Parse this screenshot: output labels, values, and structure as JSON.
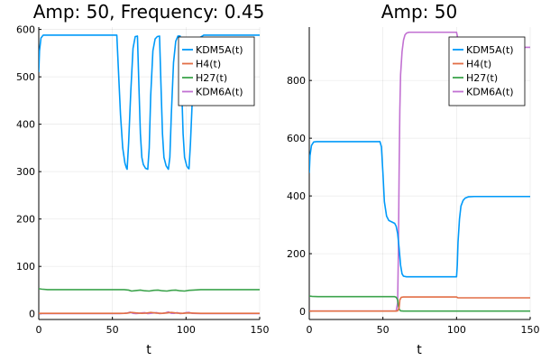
{
  "chart_data": [
    {
      "type": "line",
      "title": "Amp: 50, Frequency: 0.45",
      "xlabel": "t",
      "ylabel": "",
      "xlim": [
        0,
        150
      ],
      "ylim": [
        -12,
        605
      ],
      "xticks": [
        0,
        50,
        100,
        150
      ],
      "yticks": [
        0,
        100,
        200,
        300,
        400,
        500,
        600
      ],
      "grid": true,
      "legend_position": "top-right",
      "series": [
        {
          "name": "KDM5A(t)",
          "color": "#009af9",
          "x": [
            0,
            0.5,
            1.5,
            3,
            5,
            10,
            53,
            54,
            55.5,
            57,
            58.5,
            59.5,
            60,
            61,
            62.5,
            64,
            65.5,
            67,
            68,
            69,
            70,
            71,
            72.5,
            74,
            75,
            76,
            77.5,
            79,
            80.5,
            82,
            83,
            84,
            85,
            86.5,
            88,
            89,
            90,
            91.5,
            93,
            94.5,
            96,
            97,
            98,
            99,
            100.5,
            101.5,
            102,
            103,
            104.5,
            106,
            108,
            112,
            150
          ],
          "y": [
            510,
            555,
            582,
            588,
            588,
            588,
            588,
            520,
            420,
            350,
            318,
            308,
            305,
            360,
            470,
            560,
            585,
            586,
            480,
            380,
            330,
            315,
            307,
            305,
            350,
            460,
            555,
            580,
            585,
            586,
            480,
            380,
            330,
            312,
            305,
            330,
            420,
            530,
            575,
            586,
            586,
            480,
            380,
            330,
            312,
            307,
            306,
            360,
            470,
            555,
            580,
            588,
            588
          ]
        },
        {
          "name": "H4(t)",
          "color": "#e26f46",
          "x": [
            0,
            50,
            58,
            60,
            63,
            66,
            70,
            73,
            76,
            80,
            84,
            87,
            90,
            94,
            98,
            101,
            105,
            110,
            150
          ],
          "y": [
            1,
            1,
            1,
            1.5,
            3,
            2,
            1,
            1.5,
            3,
            1.5,
            1,
            2,
            3,
            1.5,
            1,
            2,
            1.5,
            1,
            1
          ]
        },
        {
          "name": "H27(t)",
          "color": "#3da44d",
          "x": [
            0,
            2,
            6,
            55,
            58,
            61,
            63,
            66,
            69,
            72,
            75,
            78,
            81,
            84,
            87,
            90,
            93,
            96,
            99,
            102,
            105,
            110,
            150
          ],
          "y": [
            53,
            52,
            51,
            51,
            51,
            50,
            48,
            49,
            50,
            48.5,
            48,
            49.5,
            50,
            48.5,
            48,
            49.5,
            50,
            48.5,
            48,
            49.5,
            50,
            51,
            51
          ]
        },
        {
          "name": "KDM6A(t)",
          "color": "#c271d2",
          "x": [
            0,
            55,
            58,
            60,
            62,
            64,
            66,
            68,
            70,
            72,
            74,
            76,
            78,
            80,
            82,
            84,
            86,
            88,
            90,
            92,
            94,
            96,
            98,
            100,
            102,
            104,
            110,
            150
          ],
          "y": [
            0.5,
            0.5,
            1,
            1.5,
            3.5,
            1,
            0.5,
            1,
            2,
            2.5,
            0.5,
            1,
            2,
            2.5,
            0.5,
            1,
            2,
            4,
            1,
            1,
            2.5,
            0.5,
            1,
            2.5,
            3,
            1,
            0.5,
            0.5
          ]
        }
      ]
    },
    {
      "type": "line",
      "title": "Amp: 50",
      "xlabel": "t",
      "ylabel": "",
      "xlim": [
        0,
        150
      ],
      "ylim": [
        -28,
        985
      ],
      "xticks": [
        0,
        50,
        100,
        150
      ],
      "yticks": [
        0,
        200,
        400,
        600,
        800
      ],
      "grid": true,
      "legend_position": "top-right",
      "series": [
        {
          "name": "KDM5A(t)",
          "color": "#009af9",
          "x": [
            0,
            0.5,
            1.5,
            3,
            5,
            10,
            48,
            49,
            50,
            51,
            52.5,
            54,
            56,
            58,
            59,
            60,
            61,
            62,
            63,
            64,
            66,
            70,
            100,
            100.5,
            101,
            102,
            103,
            104.5,
            106,
            108,
            112,
            150
          ],
          "y": [
            480,
            540,
            575,
            587,
            588,
            588,
            588,
            570,
            480,
            380,
            330,
            315,
            310,
            305,
            295,
            270,
            220,
            160,
            130,
            122,
            120,
            120,
            120,
            160,
            240,
            320,
            365,
            385,
            393,
            397,
            398,
            398
          ]
        },
        {
          "name": "H4(t)",
          "color": "#e26f46",
          "x": [
            0,
            59,
            60,
            61,
            61.5,
            62.5,
            64,
            70,
            100,
            101,
            105,
            150
          ],
          "y": [
            1,
            1,
            2,
            12,
            40,
            49,
            50,
            50,
            50,
            47,
            47,
            47
          ]
        },
        {
          "name": "H27(t)",
          "color": "#3da44d",
          "x": [
            0,
            2,
            6,
            58,
            59,
            60,
            60.5,
            61,
            62,
            64,
            150
          ],
          "y": [
            53,
            52,
            51,
            51,
            49,
            40,
            20,
            8,
            2,
            1,
            1
          ]
        },
        {
          "name": "KDM6A(t)",
          "color": "#c271d2",
          "x": [
            0,
            59,
            60,
            60.5,
            61,
            61.5,
            62,
            63,
            64,
            65,
            66,
            67,
            68,
            70,
            100,
            100.5,
            101,
            102,
            103,
            105,
            150
          ],
          "y": [
            1,
            1,
            30,
            200,
            480,
            700,
            820,
            900,
            940,
            958,
            964,
            966,
            967,
            967,
            967,
            955,
            940,
            925,
            918,
            915,
            915
          ]
        }
      ]
    }
  ]
}
